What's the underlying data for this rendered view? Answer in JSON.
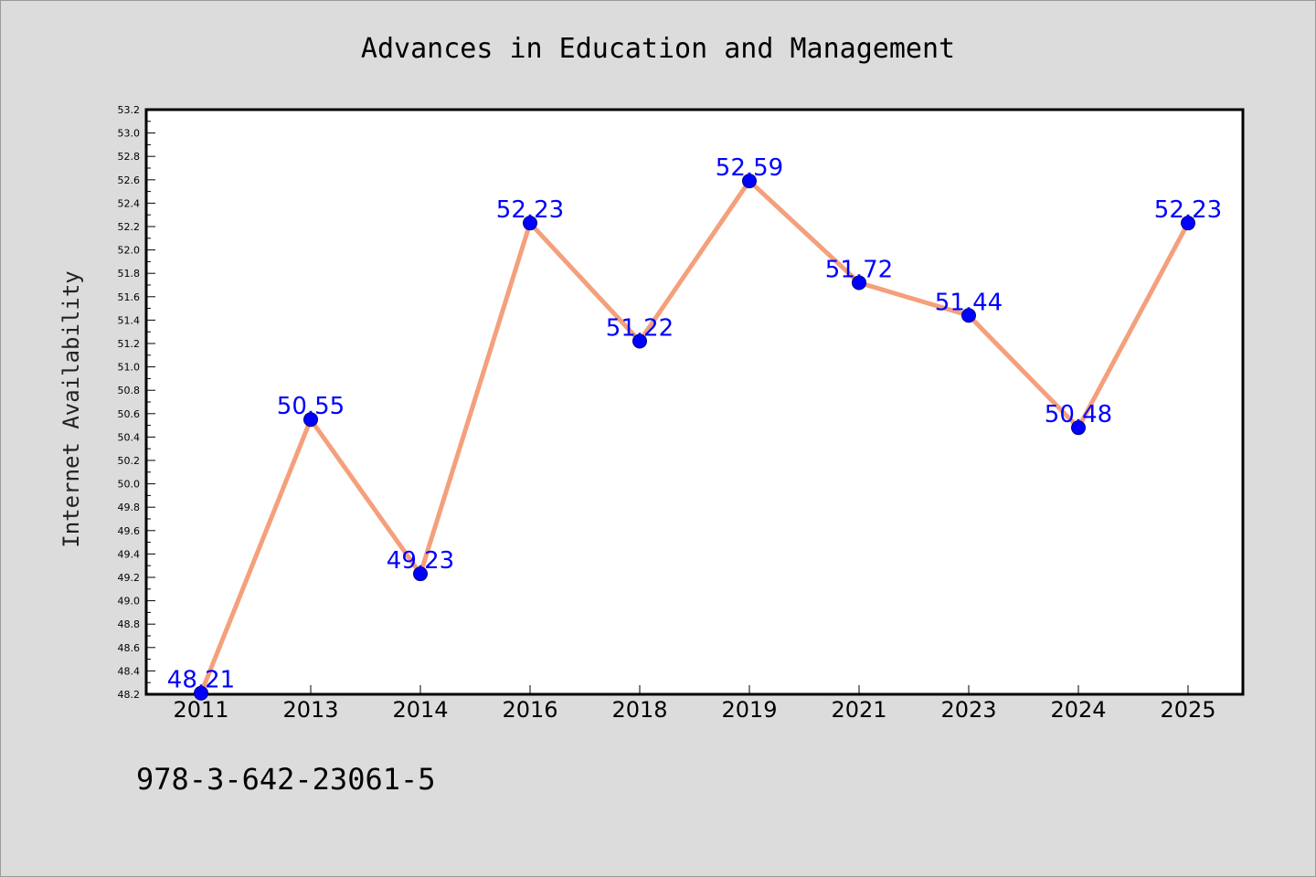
{
  "page": {
    "footer": "978-3-642-23061-5"
  },
  "colors": {
    "background": "#dcdcdc",
    "plot_background": "#ffffff",
    "line": "#f4a07c",
    "marker_fill": "#0000ff",
    "marker_edge": "#000080",
    "data_label": "#0000ff"
  },
  "chart_data": {
    "type": "line",
    "title": "Advances in Education and Management",
    "xlabel": "",
    "ylabel": "Internet Availability",
    "categories": [
      "2011",
      "2013",
      "2014",
      "2016",
      "2018",
      "2019",
      "2021",
      "2023",
      "2024",
      "2025"
    ],
    "series": [
      {
        "values": [
          48.21,
          50.55,
          49.23,
          52.23,
          51.22,
          52.59,
          51.72,
          51.44,
          50.48,
          52.23
        ],
        "labels": [
          "48.21",
          "50.55",
          "49.23",
          "52.23",
          "51.22",
          "52.59",
          "51.72",
          "51.44",
          "50.48",
          "52.23"
        ]
      }
    ],
    "ylim": [
      48.2,
      53.2
    ],
    "yticks": [
      "48.2",
      "48.4",
      "48.6",
      "48.8",
      "49.0",
      "49.2",
      "49.4",
      "49.6",
      "49.8",
      "50.0",
      "50.2",
      "50.4",
      "50.6",
      "50.8",
      "51.0",
      "51.2",
      "51.4",
      "51.6",
      "51.8",
      "52.0",
      "52.2",
      "52.4",
      "52.6",
      "52.8",
      "53.0",
      "53.2"
    ],
    "grid": false,
    "legend": "none"
  }
}
